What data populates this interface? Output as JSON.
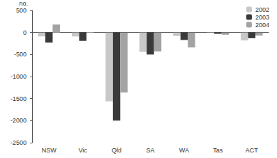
{
  "chart_data": {
    "type": "bar",
    "y_label": "no.",
    "categories": [
      "NSW",
      "Vic",
      "Qld",
      "SA",
      "WA",
      "Tas",
      "ACT"
    ],
    "series": [
      {
        "name": "2002",
        "color": "#c8c8c8",
        "values": [
          -90,
          -90,
          -1560,
          -440,
          -80,
          -10,
          -180
        ]
      },
      {
        "name": "2003",
        "color": "#3a3a3a",
        "values": [
          -230,
          -190,
          -2000,
          -500,
          -170,
          -30,
          -130
        ]
      },
      {
        "name": "2004",
        "color": "#a3a3a3",
        "values": [
          180,
          10,
          -1360,
          -430,
          -340,
          -50,
          -70
        ]
      }
    ],
    "ylim": [
      -2500,
      500
    ],
    "yticks": [
      -2500,
      -2000,
      -1500,
      -1000,
      -500,
      0,
      500
    ],
    "grid": false,
    "legend": "top-right"
  }
}
